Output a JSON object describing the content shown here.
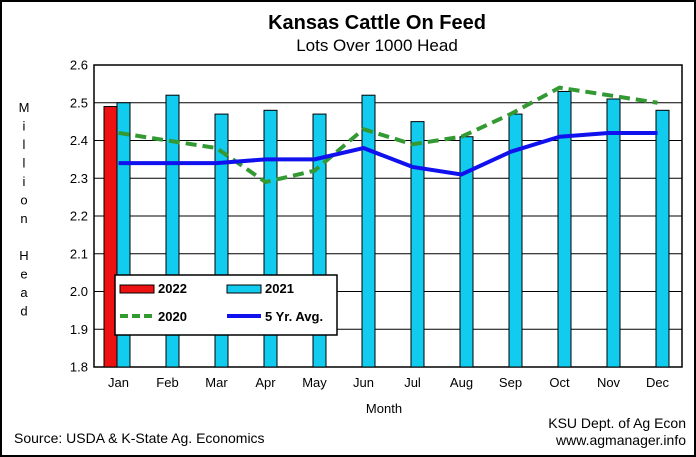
{
  "chart_data": {
    "type": "bar",
    "title": "Kansas Cattle On Feed",
    "subtitle": "Lots Over 1000 Head",
    "xlabel": "Month",
    "ylabel_letters": [
      "M",
      "i",
      "l",
      "l",
      "i",
      "o",
      "n",
      "",
      "H",
      "e",
      "a",
      "d"
    ],
    "categories": [
      "Jan",
      "Feb",
      "Mar",
      "Apr",
      "May",
      "Jun",
      "Jul",
      "Aug",
      "Sep",
      "Oct",
      "Nov",
      "Dec"
    ],
    "ylim": [
      1.8,
      2.6
    ],
    "yticks": [
      "1.8",
      "1.9",
      "2.0",
      "2.1",
      "2.2",
      "2.3",
      "2.4",
      "2.5",
      "2.6"
    ],
    "grid": true,
    "legend_position": "lower-left",
    "bar_series": [
      {
        "name": "2022",
        "color": "#ee1111",
        "values": [
          2.49,
          null,
          null,
          null,
          null,
          null,
          null,
          null,
          null,
          null,
          null,
          null
        ]
      },
      {
        "name": "2021",
        "color": "#11ccee",
        "values": [
          2.5,
          2.52,
          2.47,
          2.48,
          2.47,
          2.52,
          2.45,
          2.41,
          2.47,
          2.53,
          2.51,
          2.48
        ]
      }
    ],
    "line_series": [
      {
        "name": "2020",
        "color": "#339933",
        "style": "dashed",
        "values": [
          2.42,
          2.4,
          2.38,
          2.29,
          2.32,
          2.43,
          2.39,
          2.41,
          2.47,
          2.54,
          2.52,
          2.5
        ]
      },
      {
        "name": "5 Yr. Avg.",
        "color": "#1111ee",
        "style": "solid",
        "values": [
          2.34,
          2.34,
          2.34,
          2.35,
          2.35,
          2.38,
          2.33,
          2.31,
          2.37,
          2.41,
          2.42,
          2.42
        ]
      }
    ]
  },
  "footer": {
    "source": "Source:  USDA & K-State Ag. Economics",
    "credit_line1": "KSU Dept. of Ag Econ",
    "credit_line2": "www.agmanager.info"
  }
}
